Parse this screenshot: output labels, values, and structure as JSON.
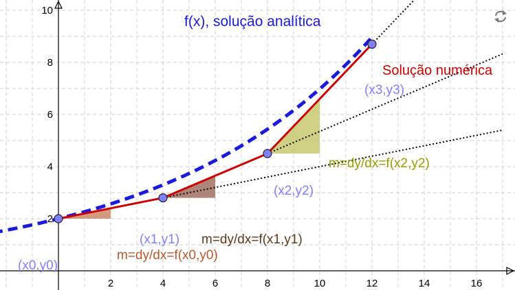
{
  "axes": {
    "x_ticks": [
      "2",
      "4",
      "6",
      "8",
      "10",
      "12",
      "14",
      "16"
    ],
    "y_ticks": [
      "2",
      "4",
      "6",
      "8",
      "10"
    ]
  },
  "labels": {
    "analytic": "f(x), solução analítica",
    "numeric": "Solução numérica",
    "p0": "(x0,y0)",
    "p1": "(x1,y1)",
    "p2": "(x2,y2)",
    "p3": "(x3,y3)",
    "slope0": "m=dy/dx=f(x0,y0)",
    "slope1": "m=dy/dx=f(x1,y1)",
    "slope2": "m=dy/dx=f(x2,y2)"
  },
  "points": [
    {
      "name": "p0",
      "x": 0,
      "y": 2
    },
    {
      "name": "p1",
      "x": 4,
      "y": 2.8
    },
    {
      "name": "p2",
      "x": 8,
      "y": 4.5
    },
    {
      "name": "p3",
      "x": 12,
      "y": 8.7
    }
  ],
  "analytic_curve": {
    "a": 2,
    "k": 0.125
  },
  "colors": {
    "analytic": "#1a1adb",
    "numeric": "#cc0000",
    "point_fill": "#8080ff",
    "point_label": "#8080ff",
    "slope0": "#b2592e",
    "slope1": "#5c3a1e",
    "slope2": "#999900",
    "tri0": "#cc8866",
    "tri1": "#a07060",
    "tri2": "#c8c870",
    "grid": "#cccccc",
    "axis": "#000000"
  },
  "icons": {
    "reset": "reset-icon"
  }
}
